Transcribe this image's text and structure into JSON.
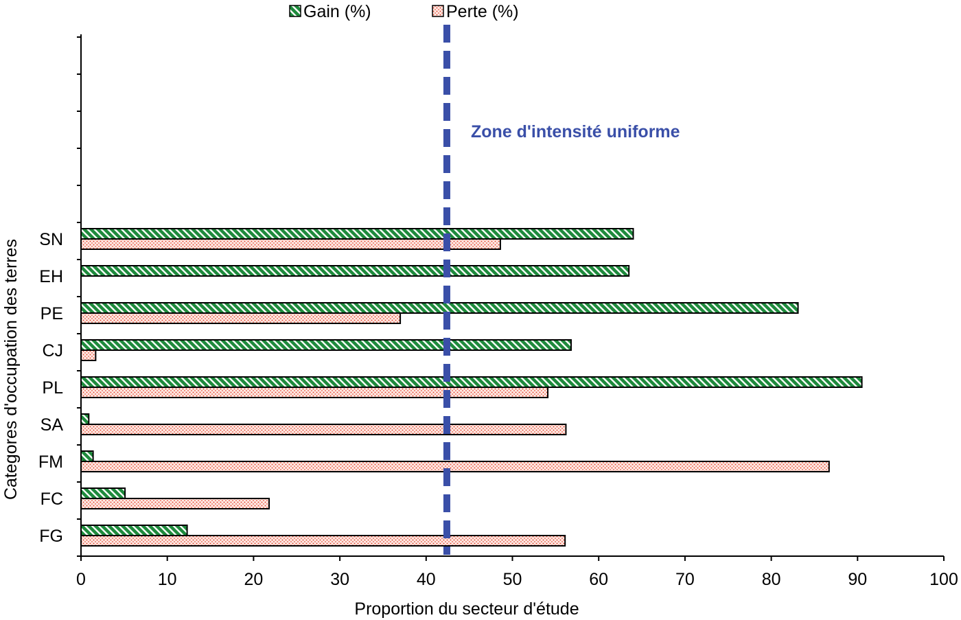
{
  "chart_data": {
    "type": "bar",
    "orientation": "horizontal",
    "title": "",
    "xlabel": "Proportion du secteur d'étude",
    "ylabel": "Categores d'occupation des terres",
    "xlim": [
      0,
      100
    ],
    "x_ticks": [
      0,
      10,
      20,
      30,
      40,
      50,
      60,
      70,
      80,
      90,
      100
    ],
    "categories": [
      "SN",
      "EH",
      "PE",
      "CJ",
      "PL",
      "SA",
      "FM",
      "FC",
      "FG"
    ],
    "series": [
      {
        "name": "Gain (%)",
        "color": "#1e8a3c",
        "pattern": "diagonal-hatch",
        "values": [
          64.0,
          63.5,
          83.1,
          56.8,
          90.5,
          0.9,
          1.4,
          5.1,
          12.3
        ]
      },
      {
        "name": "Perte (%)",
        "color": "#e8503c",
        "pattern": "dots",
        "values": [
          48.6,
          null,
          37.0,
          1.7,
          54.1,
          56.2,
          86.7,
          21.8,
          56.1
        ]
      }
    ],
    "reference_line": {
      "value": 42.4,
      "label": "Zone d'intensité uniforme",
      "color": "#3a4fa8",
      "style": "dashed"
    },
    "legend": {
      "position": "top-center"
    },
    "grid": false
  }
}
